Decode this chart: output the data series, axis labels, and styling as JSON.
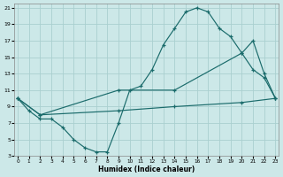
{
  "xlabel": "Humidex (Indice chaleur)",
  "bg_color": "#cce8e8",
  "grid_color": "#aad0d0",
  "line_color": "#1a6b6b",
  "line1_x": [
    0,
    1,
    2,
    3,
    4,
    5,
    6,
    7,
    8,
    9,
    10,
    11,
    12,
    13,
    14,
    15,
    16,
    17,
    18,
    19,
    20,
    21,
    22,
    23
  ],
  "line1_y": [
    10,
    8.5,
    7.5,
    7.5,
    6.5,
    5.0,
    4.0,
    3.5,
    3.5,
    7.0,
    11.0,
    11.5,
    13.5,
    16.5,
    18.5,
    20.5,
    21.0,
    20.5,
    18.5,
    17.5,
    15.5,
    13.5,
    12.5,
    10.0
  ],
  "line2_x": [
    0,
    2,
    9,
    14,
    20,
    21,
    22,
    23
  ],
  "line2_y": [
    10,
    8.0,
    11.0,
    11.0,
    15.5,
    17.0,
    13.0,
    10.0
  ],
  "line3_x": [
    0,
    2,
    9,
    14,
    20,
    23
  ],
  "line3_y": [
    10,
    8.0,
    8.5,
    9.0,
    9.5,
    10.0
  ],
  "xlim": [
    -0.3,
    23.3
  ],
  "ylim": [
    3,
    21.5
  ],
  "xticks": [
    0,
    1,
    2,
    3,
    4,
    5,
    6,
    7,
    8,
    9,
    10,
    11,
    12,
    13,
    14,
    15,
    16,
    17,
    18,
    19,
    20,
    21,
    22,
    23
  ],
  "yticks": [
    3,
    5,
    7,
    9,
    11,
    13,
    15,
    17,
    19,
    21
  ]
}
